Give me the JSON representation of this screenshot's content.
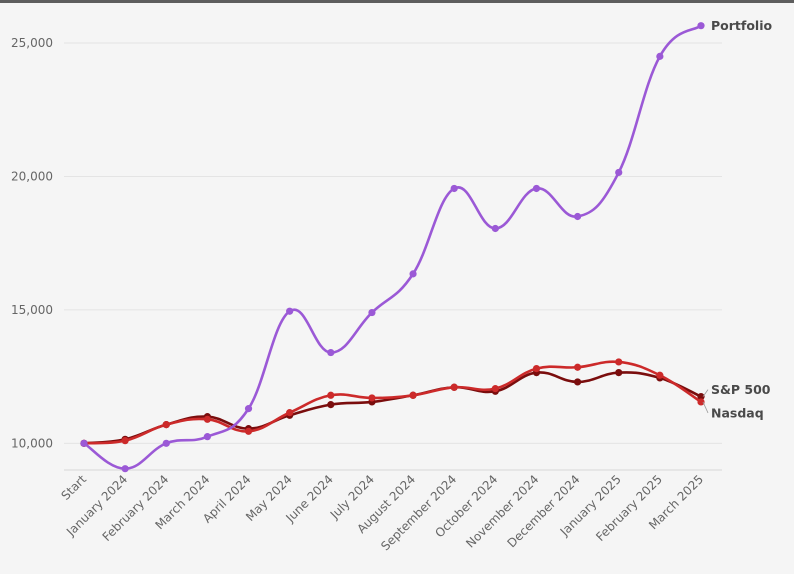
{
  "chart_data": {
    "type": "line",
    "categories": [
      "Start",
      "January 2024",
      "February 2024",
      "March 2024",
      "April 2024",
      "May 2024",
      "June 2024",
      "July 2024",
      "August 2024",
      "September 2024",
      "October 2024",
      "November 2024",
      "December 2024",
      "January 2025",
      "February 2025",
      "March 2025"
    ],
    "ylim": [
      9000,
      26500
    ],
    "yticks": [
      10000,
      15000,
      20000,
      25000
    ],
    "ytick_labels": [
      "10,000",
      "15,000",
      "20,000",
      "25,000"
    ],
    "grid": true,
    "series": [
      {
        "name": "Portfolio",
        "color": "#9b59d6",
        "values": [
          10000,
          9050,
          10000,
          10250,
          11300,
          14950,
          13400,
          14900,
          16350,
          19550,
          18050,
          19550,
          18500,
          20150,
          24500,
          25650
        ]
      },
      {
        "name": "S&P 500",
        "color": "#7a0d0d",
        "values": [
          10000,
          10150,
          10700,
          11000,
          10550,
          11050,
          11450,
          11550,
          11800,
          12100,
          11950,
          12650,
          12300,
          12650,
          12450,
          11750
        ]
      },
      {
        "name": "Nasdaq",
        "color": "#cc2a2a",
        "values": [
          10000,
          10100,
          10700,
          10900,
          10450,
          11150,
          11800,
          11700,
          11800,
          12100,
          12050,
          12800,
          12850,
          13050,
          12550,
          11550
        ]
      }
    ]
  }
}
